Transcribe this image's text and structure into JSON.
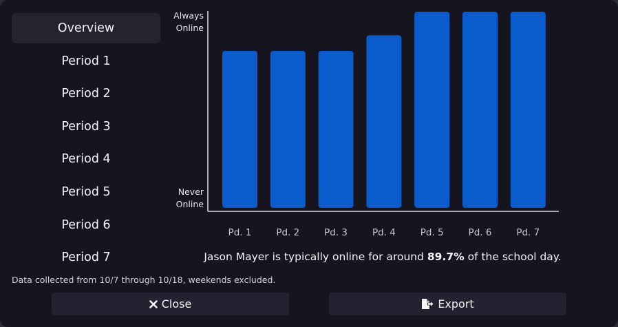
{
  "nav": {
    "items": [
      {
        "id": "overview",
        "label": "Overview",
        "active": true
      },
      {
        "id": "period-1",
        "label": "Period 1"
      },
      {
        "id": "period-2",
        "label": "Period 2"
      },
      {
        "id": "period-3",
        "label": "Period 3"
      },
      {
        "id": "period-4",
        "label": "Period 4"
      },
      {
        "id": "period-5",
        "label": "Period 5"
      },
      {
        "id": "period-6",
        "label": "Period 6"
      },
      {
        "id": "period-7",
        "label": "Period 7"
      }
    ]
  },
  "chart_data": {
    "type": "bar",
    "categories": [
      "Pd. 1",
      "Pd. 2",
      "Pd. 3",
      "Pd. 4",
      "Pd. 5",
      "Pd. 6",
      "Pd. 7"
    ],
    "values": [
      0.8,
      0.8,
      0.8,
      0.88,
      1.0,
      1.0,
      1.0
    ],
    "ylim": [
      0,
      1
    ],
    "yticks": [
      {
        "value": 1,
        "label_lines": [
          "Always",
          "Online"
        ]
      },
      {
        "value": 0,
        "label_lines": [
          "Never",
          "Online"
        ]
      }
    ],
    "bar_color": "#0a5ccc",
    "axis_color": "#e0e0e6",
    "grid": false,
    "legend": "none"
  },
  "summary": {
    "prefix": "Jason Mayer is typically online for around ",
    "value": "89.7%",
    "suffix": " of the school day."
  },
  "footnote": "Data collected from 10/7 through 10/18, weekends excluded.",
  "buttons": {
    "close": {
      "label": "Close",
      "icon": "x-icon"
    },
    "export": {
      "label": "Export",
      "icon": "export-file-icon"
    }
  }
}
